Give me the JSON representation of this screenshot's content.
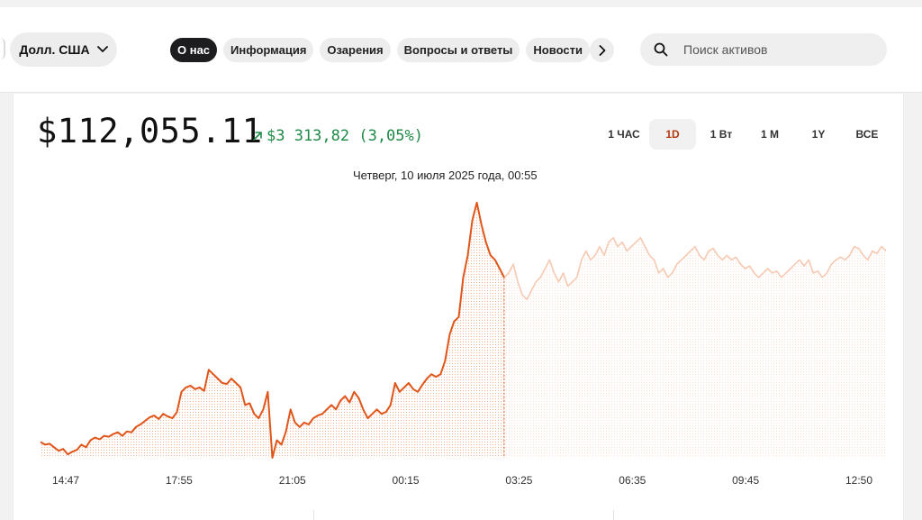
{
  "header": {
    "currency_label": "Долл. США",
    "nav": {
      "tabs": [
        {
          "label": "О нас",
          "active": true
        },
        {
          "label": "Информация",
          "active": false
        },
        {
          "label": "Озарения",
          "active": false
        },
        {
          "label": "Вопросы и ответы",
          "active": false
        },
        {
          "label": "Новости",
          "active": false
        }
      ]
    },
    "search_placeholder": "Поиск активов"
  },
  "summary": {
    "price": "$112,055.11",
    "change": "$3 313,82 (3,05%)",
    "change_color": "#1f8a47"
  },
  "ranges": {
    "items": [
      {
        "label": "1 ЧАС",
        "active": false
      },
      {
        "label": "1D",
        "active": true
      },
      {
        "label": "1 Вт",
        "active": false
      },
      {
        "label": "1 М",
        "active": false
      },
      {
        "label": "1Y",
        "active": false
      },
      {
        "label": "ВСЕ",
        "active": false
      }
    ]
  },
  "tooltip": {
    "label": "Четверг, 10 июля 2025 года, 00:55"
  },
  "colors": {
    "line": "#e0561a",
    "line_faded": "#f6c9b2",
    "accent_active_range": "#b53a12"
  },
  "chart_data": {
    "type": "line",
    "title": "",
    "xlabel": "",
    "ylabel": "",
    "x_ticks": [
      "14:47",
      "17:55",
      "21:05",
      "00:15",
      "03:25",
      "06:35",
      "09:45",
      "12:50"
    ],
    "highlight_x": "00:55",
    "grid": false,
    "ylim": [
      0,
      300
    ],
    "series": [
      {
        "highlighted_segment_end_index": 102,
        "values": [
          18,
          15,
          16,
          12,
          8,
          10,
          4,
          7,
          9,
          15,
          12,
          20,
          23,
          21,
          25,
          24,
          27,
          29,
          25,
          30,
          29,
          35,
          38,
          42,
          46,
          48,
          44,
          50,
          47,
          45,
          52,
          75,
          80,
          82,
          78,
          80,
          76,
          100,
          95,
          90,
          85,
          84,
          90,
          85,
          80,
          60,
          62,
          50,
          45,
          55,
          75,
          0,
          20,
          15,
          30,
          55,
          40,
          35,
          40,
          38,
          45,
          48,
          50,
          55,
          60,
          55,
          65,
          70,
          63,
          75,
          68,
          55,
          45,
          50,
          55,
          50,
          52,
          60,
          85,
          75,
          80,
          85,
          78,
          75,
          83,
          90,
          95,
          92,
          95,
          110,
          140,
          155,
          160,
          205,
          230,
          270,
          290,
          265,
          245,
          230,
          225,
          215,
          205,
          210,
          220,
          200,
          185,
          180,
          190,
          200,
          205,
          215,
          225,
          210,
          200,
          210,
          195,
          200,
          205,
          225,
          235,
          225,
          230,
          240,
          230,
          245,
          250,
          240,
          245,
          235,
          240,
          245,
          250,
          240,
          230,
          225,
          210,
          215,
          205,
          210,
          220,
          225,
          230,
          235,
          240,
          230,
          225,
          235,
          238,
          230,
          225,
          230,
          225,
          228,
          220,
          215,
          218,
          210,
          205,
          210,
          215,
          210,
          212,
          205,
          210,
          215,
          220,
          225,
          218,
          225,
          210,
          212,
          205,
          210,
          220,
          225,
          228,
          225,
          230,
          240,
          238,
          230,
          225,
          235,
          232,
          240,
          235
        ]
      }
    ]
  }
}
